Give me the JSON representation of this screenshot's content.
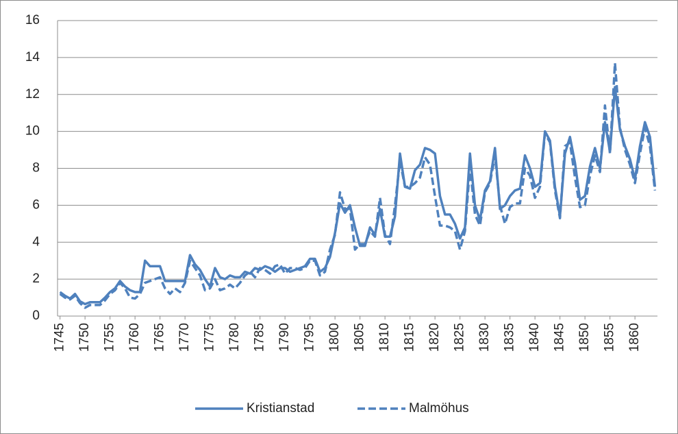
{
  "chart_data": {
    "type": "line",
    "x": [
      1745,
      1746,
      1747,
      1748,
      1749,
      1750,
      1751,
      1752,
      1753,
      1754,
      1755,
      1756,
      1757,
      1758,
      1759,
      1760,
      1761,
      1762,
      1763,
      1764,
      1765,
      1766,
      1767,
      1768,
      1769,
      1770,
      1771,
      1772,
      1773,
      1774,
      1775,
      1776,
      1777,
      1778,
      1779,
      1780,
      1781,
      1782,
      1783,
      1784,
      1785,
      1786,
      1787,
      1788,
      1789,
      1790,
      1791,
      1792,
      1793,
      1794,
      1795,
      1796,
      1797,
      1798,
      1799,
      1800,
      1801,
      1802,
      1803,
      1804,
      1805,
      1806,
      1807,
      1808,
      1809,
      1810,
      1811,
      1812,
      1813,
      1814,
      1815,
      1816,
      1817,
      1818,
      1819,
      1820,
      1821,
      1822,
      1823,
      1824,
      1825,
      1826,
      1827,
      1828,
      1829,
      1830,
      1831,
      1832,
      1833,
      1834,
      1835,
      1836,
      1837,
      1838,
      1839,
      1840,
      1841,
      1842,
      1843,
      1844,
      1845,
      1846,
      1847,
      1848,
      1849,
      1850,
      1851,
      1852,
      1853,
      1854,
      1855,
      1856,
      1857,
      1858,
      1859,
      1860,
      1861,
      1862,
      1863,
      1864
    ],
    "series": [
      {
        "name": "Kristianstad",
        "color": "#4f81bd",
        "dash": false,
        "values": [
          1.3,
          1.1,
          0.95,
          1.2,
          0.8,
          0.65,
          0.75,
          0.75,
          0.75,
          1.0,
          1.3,
          1.5,
          1.9,
          1.6,
          1.4,
          1.3,
          1.3,
          3.0,
          2.7,
          2.7,
          2.7,
          1.9,
          1.9,
          1.9,
          1.9,
          1.9,
          3.3,
          2.8,
          2.5,
          2.0,
          1.6,
          2.6,
          2.1,
          2.0,
          2.2,
          2.1,
          2.1,
          2.4,
          2.3,
          2.6,
          2.5,
          2.7,
          2.6,
          2.4,
          2.6,
          2.6,
          2.4,
          2.5,
          2.6,
          2.7,
          3.1,
          3.1,
          2.4,
          2.6,
          3.2,
          4.5,
          6.1,
          5.6,
          6.0,
          4.8,
          3.8,
          3.8,
          4.8,
          4.4,
          5.8,
          4.3,
          4.3,
          5.4,
          8.8,
          7.0,
          6.9,
          7.9,
          8.2,
          9.1,
          9.0,
          8.8,
          6.5,
          5.5,
          5.5,
          5.0,
          4.2,
          4.8,
          8.8,
          6.0,
          5.2,
          6.8,
          7.3,
          9.1,
          5.8,
          6.0,
          6.5,
          6.8,
          6.9,
          8.7,
          8.0,
          7.0,
          7.2,
          10.0,
          9.5,
          7.0,
          5.4,
          8.8,
          9.7,
          8.3,
          6.3,
          6.5,
          8.1,
          9.1,
          8.0,
          10.5,
          8.9,
          12.4,
          10.1,
          9.2,
          8.5,
          7.4,
          9.2,
          10.5,
          9.7,
          7.0
        ]
      },
      {
        "name": "Malmöhus",
        "color": "#4f81bd",
        "dash": true,
        "values": [
          1.2,
          1.0,
          0.9,
          1.1,
          0.7,
          0.45,
          0.6,
          0.6,
          0.6,
          0.85,
          1.2,
          1.4,
          1.8,
          1.5,
          1.0,
          0.95,
          1.2,
          1.8,
          1.9,
          2.0,
          2.1,
          1.5,
          1.2,
          1.5,
          1.3,
          1.8,
          3.0,
          2.6,
          2.2,
          1.4,
          1.5,
          2.0,
          1.4,
          1.5,
          1.7,
          1.5,
          1.8,
          2.2,
          2.4,
          2.1,
          2.6,
          2.5,
          2.3,
          2.7,
          2.8,
          2.3,
          2.6,
          2.6,
          2.5,
          2.6,
          3.0,
          3.0,
          2.2,
          2.4,
          3.6,
          4.4,
          6.7,
          5.8,
          5.8,
          3.6,
          3.9,
          3.9,
          4.6,
          4.3,
          6.4,
          4.4,
          3.9,
          6.0,
          8.4,
          7.0,
          7.0,
          7.2,
          7.5,
          8.6,
          8.2,
          6.5,
          4.9,
          4.9,
          4.8,
          4.6,
          3.6,
          4.6,
          8.1,
          5.5,
          4.9,
          6.7,
          7.2,
          8.7,
          6.0,
          5.0,
          5.9,
          6.1,
          6.1,
          8.0,
          7.6,
          6.4,
          7.0,
          9.9,
          9.4,
          6.8,
          5.3,
          9.2,
          9.4,
          7.5,
          5.9,
          6.0,
          7.6,
          8.7,
          7.8,
          11.4,
          8.8,
          13.7,
          10.2,
          9.0,
          8.2,
          7.2,
          8.8,
          10.2,
          9.2,
          6.8
        ]
      }
    ],
    "xlim": [
      1744.5,
      1864.5
    ],
    "xticks": [
      1745,
      1750,
      1755,
      1760,
      1765,
      1770,
      1775,
      1780,
      1785,
      1790,
      1795,
      1800,
      1805,
      1810,
      1815,
      1820,
      1825,
      1830,
      1835,
      1840,
      1845,
      1850,
      1855,
      1860
    ],
    "ylim": [
      0,
      16
    ],
    "yticks": [
      0,
      2,
      4,
      6,
      8,
      10,
      12,
      14,
      16
    ],
    "grid": true,
    "legend": "bottom"
  }
}
